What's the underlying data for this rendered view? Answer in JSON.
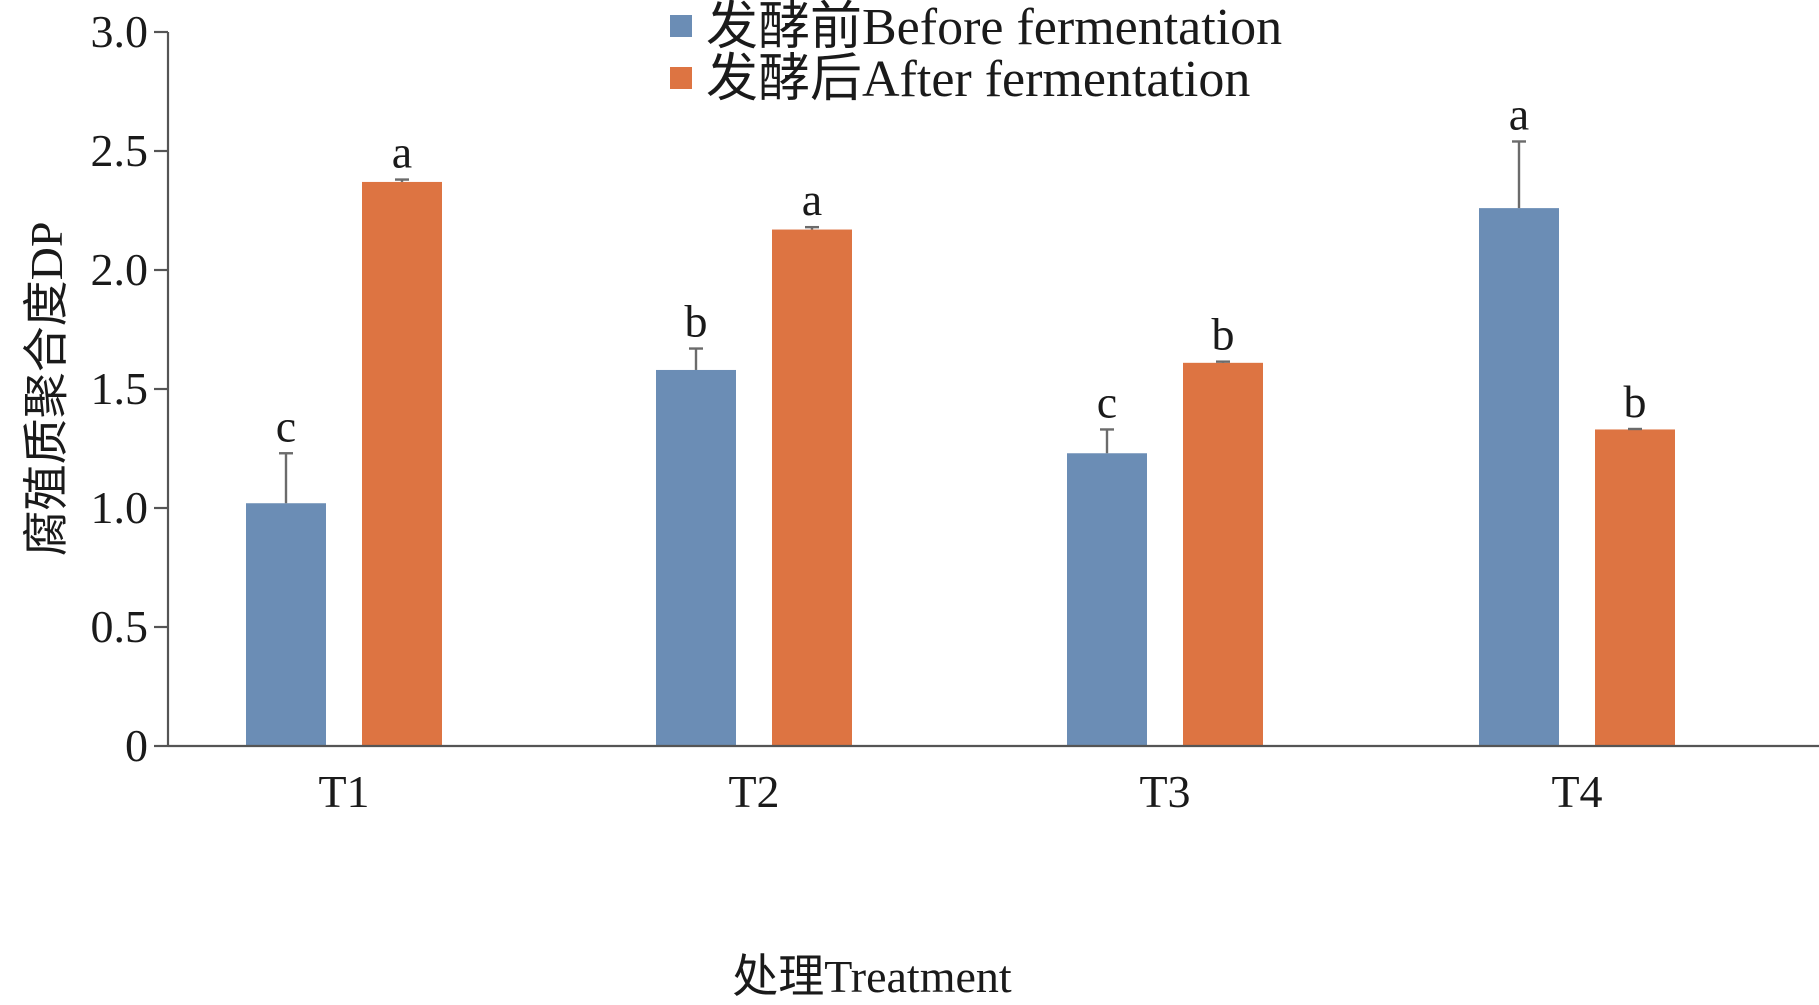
{
  "chart_data": {
    "type": "bar",
    "title": "",
    "xlabel": "处理Treatment",
    "ylabel": "腐殖质聚合度DP",
    "ylim": [
      0,
      3.0
    ],
    "yticks": [
      0,
      0.5,
      1.0,
      1.5,
      2.0,
      2.5,
      3.0
    ],
    "ytick_labels": [
      "0",
      "0.5",
      "1.0",
      "1.5",
      "2.0",
      "2.5",
      "3.0"
    ],
    "categories": [
      "T1",
      "T2",
      "T3",
      "T4"
    ],
    "legend_position": "top-center",
    "grid": false,
    "series": [
      {
        "name": "发酵前Before fermentation",
        "color": "#6b8db5",
        "values": [
          1.02,
          1.58,
          1.23,
          2.26
        ],
        "errors": [
          0.21,
          0.09,
          0.1,
          0.28
        ],
        "letters": [
          "c",
          "b",
          "c",
          "a"
        ]
      },
      {
        "name": "发酵后After fermentation",
        "color": "#dd7442",
        "values": [
          2.37,
          2.17,
          1.61,
          1.33
        ],
        "errors": [
          0.01,
          0.01,
          0.005,
          0.002
        ],
        "letters": [
          "a",
          "a",
          "b",
          "b"
        ]
      }
    ]
  }
}
